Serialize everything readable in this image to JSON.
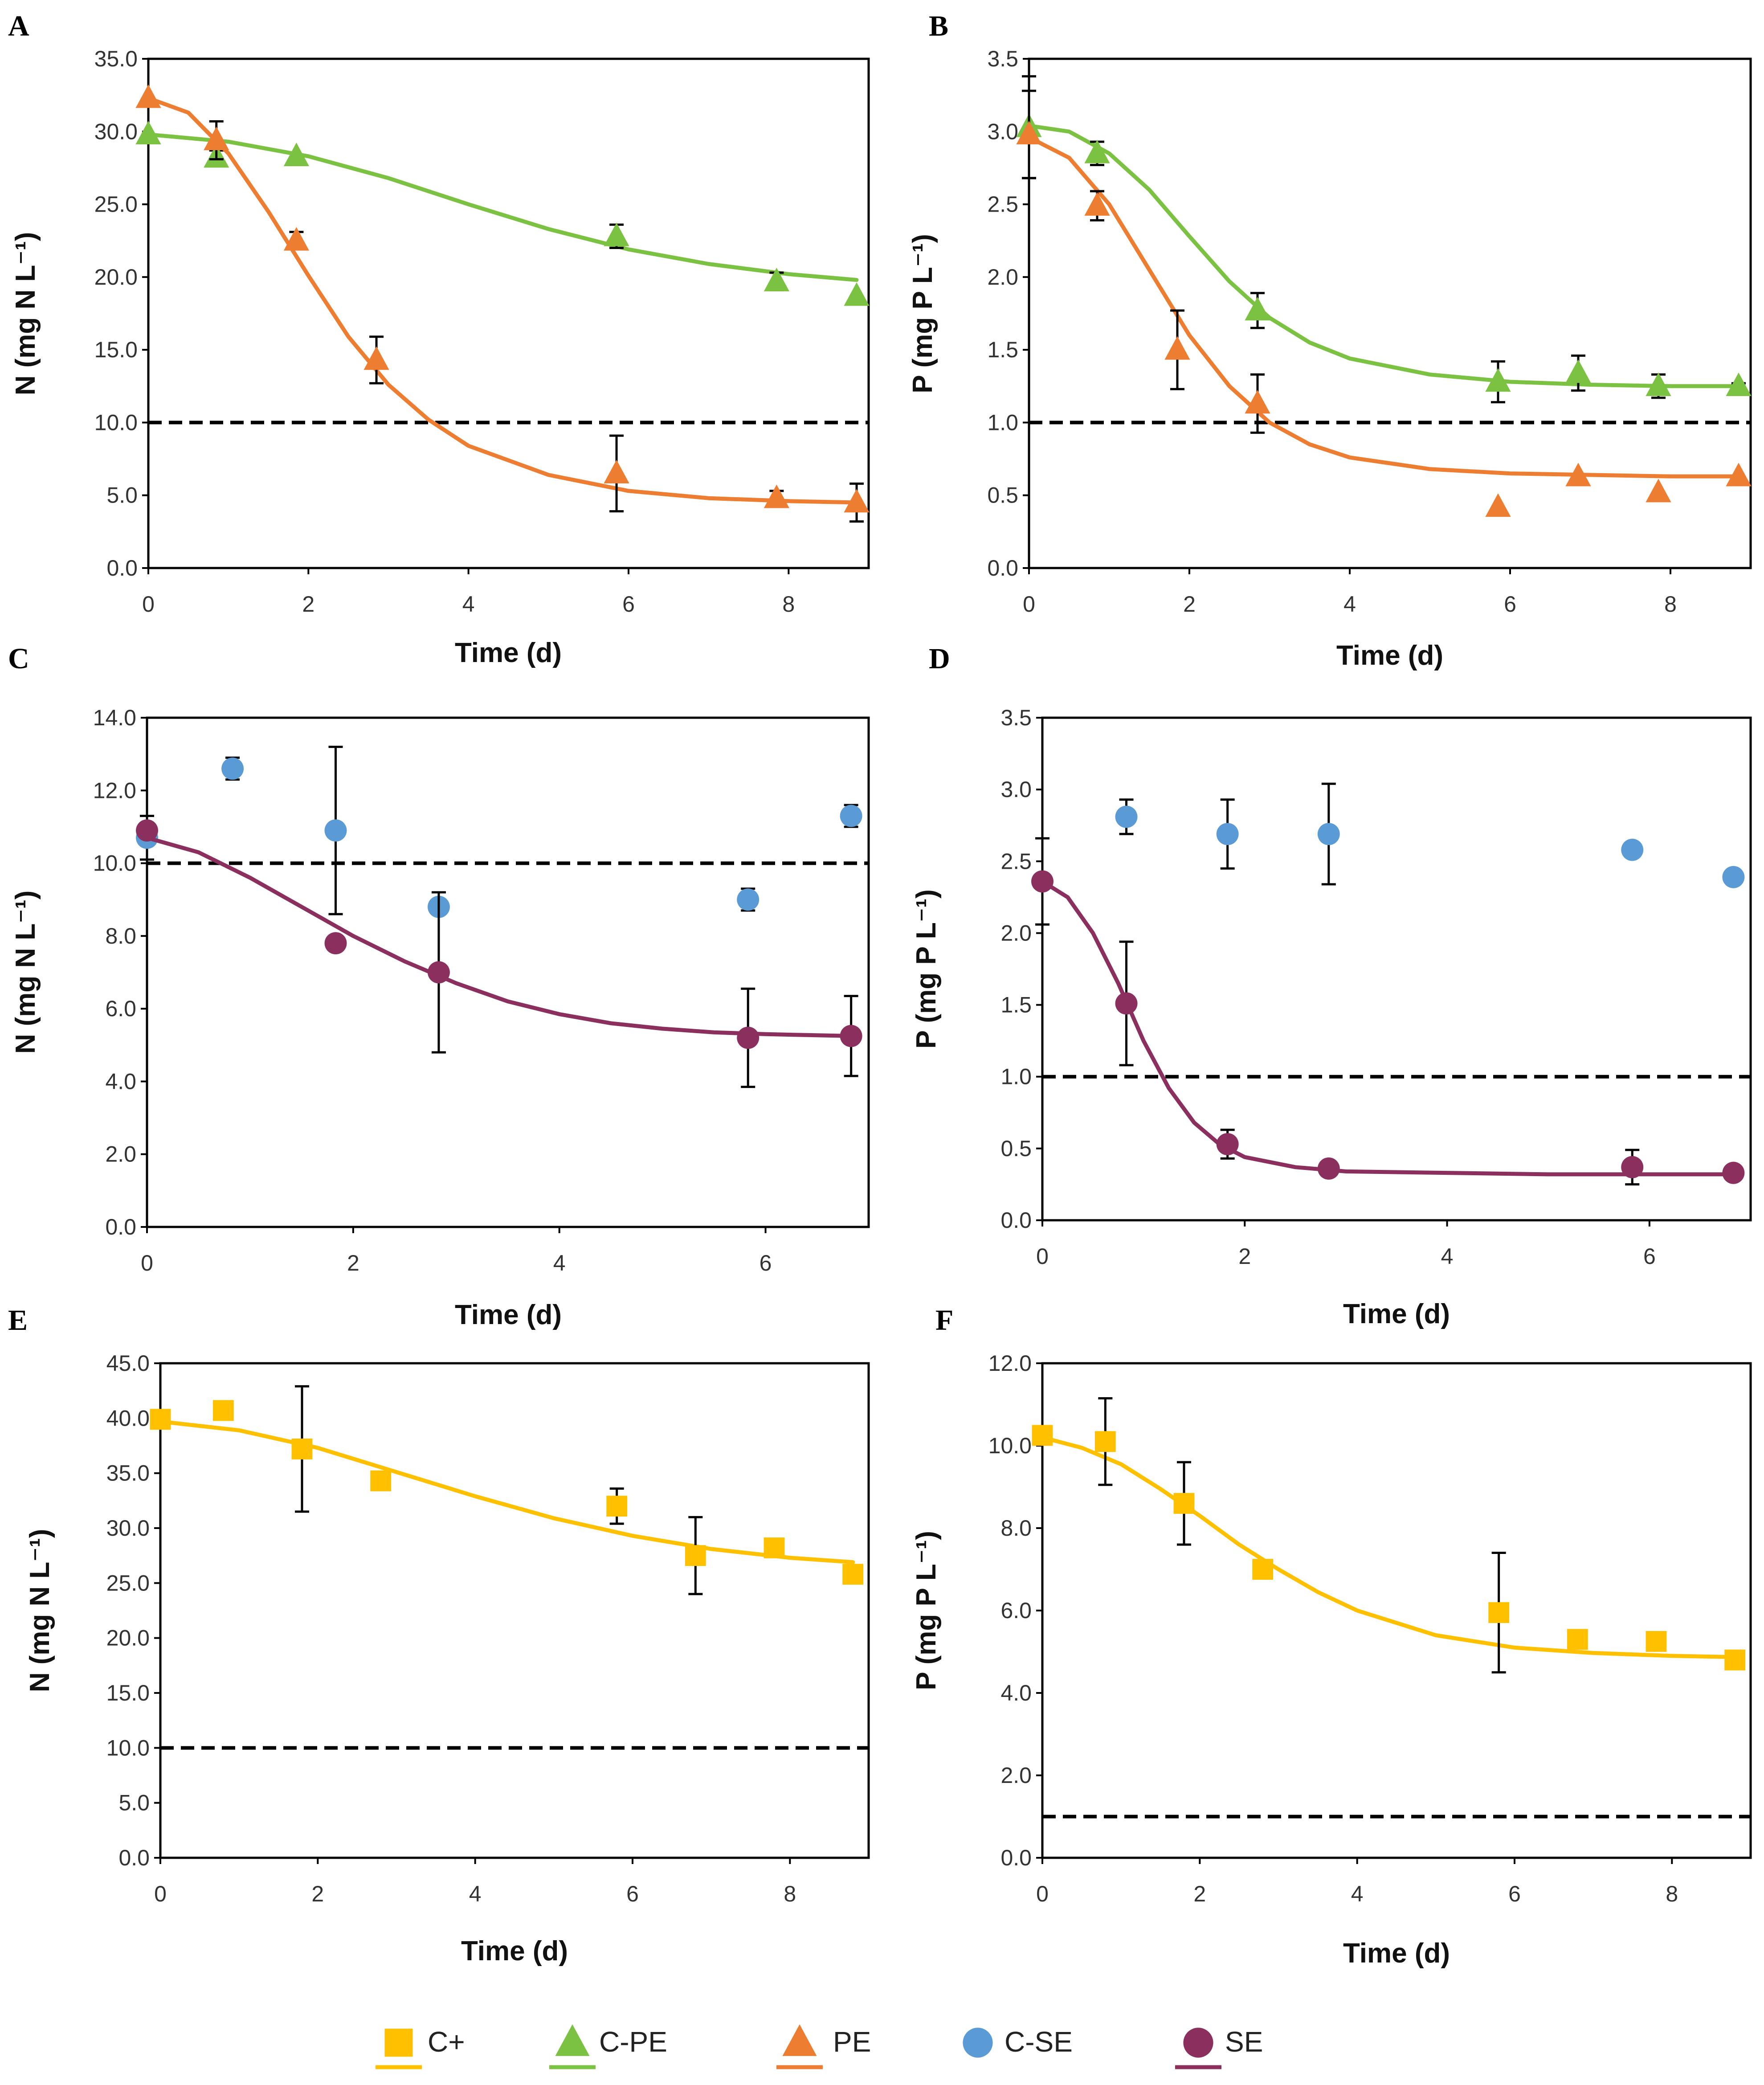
{
  "legend": [
    {
      "key": "cplus",
      "label": "C+",
      "marker": "square",
      "color": "#FFC000",
      "has_line": true
    },
    {
      "key": "cpe",
      "label": "C-PE",
      "marker": "triangle",
      "color": "#7CC242",
      "has_line": true
    },
    {
      "key": "pe",
      "label": "PE",
      "marker": "triangle",
      "color": "#ED7D31",
      "has_line": true
    },
    {
      "key": "cse",
      "label": "C-SE",
      "marker": "circle",
      "color": "#5B9BD5",
      "has_line": false
    },
    {
      "key": "se",
      "label": "SE",
      "marker": "circle",
      "color": "#8B2F5E",
      "has_line": true
    }
  ],
  "chart_data": [
    {
      "id": "A",
      "type": "scatter",
      "xlabel": "Time (d)",
      "ylabel": "N (mg N L⁻¹)",
      "xlim": [
        0,
        9
      ],
      "ylim": [
        0,
        35
      ],
      "xticks": [
        0,
        2,
        4,
        6,
        8
      ],
      "xtick_labels": [
        "0",
        "2",
        "4",
        "6",
        "8"
      ],
      "yticks": [
        0,
        5,
        10,
        15,
        20,
        25,
        30,
        35
      ],
      "ytick_labels": [
        "0.0",
        "5.0",
        "10.0",
        "15.0",
        "20.0",
        "25.0",
        "30.0",
        "35.0"
      ],
      "threshold": 10,
      "series": [
        {
          "name": "C-PE",
          "marker": "triangle",
          "color": "#7CC242",
          "x": [
            0,
            0.85,
            1.85,
            5.85,
            7.85,
            8.85
          ],
          "y": [
            29.8,
            28.2,
            28.3,
            22.8,
            19.7,
            18.7
          ],
          "err": [
            0,
            0.5,
            0,
            0.8,
            0.6,
            0
          ],
          "fit_x": [
            0,
            1,
            2,
            3,
            4,
            5,
            6,
            7,
            8,
            8.85
          ],
          "fit_y": [
            29.8,
            29.3,
            28.3,
            26.8,
            25.0,
            23.3,
            21.9,
            20.9,
            20.2,
            19.8
          ]
        },
        {
          "name": "PE",
          "marker": "triangle",
          "color": "#ED7D31",
          "x": [
            0,
            0.85,
            1.85,
            2.85,
            5.85,
            7.85,
            8.85
          ],
          "y": [
            32.3,
            29.4,
            22.5,
            14.3,
            6.5,
            4.8,
            4.5
          ],
          "err": [
            0,
            1.3,
            0.6,
            1.6,
            2.6,
            0.5,
            1.3
          ],
          "fit_x": [
            0,
            0.5,
            1,
            1.5,
            2,
            2.5,
            3,
            3.5,
            4,
            5,
            6,
            7,
            8,
            8.85
          ],
          "fit_y": [
            32.3,
            31.3,
            28.5,
            24.5,
            20.1,
            15.9,
            12.6,
            10.2,
            8.4,
            6.4,
            5.3,
            4.8,
            4.6,
            4.5
          ]
        }
      ]
    },
    {
      "id": "B",
      "type": "scatter",
      "xlabel": "Time (d)",
      "ylabel": "P (mg P L⁻¹)",
      "xlim": [
        0,
        9
      ],
      "ylim": [
        0,
        3.5
      ],
      "xticks": [
        0,
        2,
        4,
        6,
        8
      ],
      "xtick_labels": [
        "0",
        "2",
        "4",
        "6",
        "8"
      ],
      "yticks": [
        0,
        0.5,
        1,
        1.5,
        2,
        2.5,
        3,
        3.5
      ],
      "ytick_labels": [
        "0.0",
        "0.5",
        "1.0",
        "1.5",
        "2.0",
        "2.5",
        "3.0",
        "3.5"
      ],
      "threshold": 1.0,
      "series": [
        {
          "name": "C-PE",
          "marker": "triangle",
          "color": "#7CC242",
          "x": [
            0,
            0.85,
            2.85,
            5.85,
            6.85,
            7.85,
            8.85
          ],
          "y": [
            3.03,
            2.85,
            1.77,
            1.28,
            1.34,
            1.25,
            1.25
          ],
          "err": [
            0.35,
            0.08,
            0.12,
            0.14,
            0.12,
            0.08,
            0.02
          ],
          "fit_x": [
            0,
            0.5,
            1,
            1.5,
            2,
            2.5,
            3,
            3.5,
            4,
            5,
            6,
            7,
            8,
            8.85
          ],
          "fit_y": [
            3.04,
            3.0,
            2.85,
            2.6,
            2.28,
            1.97,
            1.72,
            1.55,
            1.44,
            1.33,
            1.28,
            1.26,
            1.25,
            1.25
          ]
        },
        {
          "name": "PE",
          "marker": "triangle",
          "color": "#ED7D31",
          "x": [
            0,
            0.85,
            1.85,
            2.85,
            5.85,
            6.85,
            7.85,
            8.85
          ],
          "y": [
            2.98,
            2.49,
            1.5,
            1.13,
            0.42,
            0.63,
            0.52,
            0.63
          ],
          "err": [
            0.3,
            0.1,
            0.27,
            0.2,
            0,
            0,
            0,
            0
          ],
          "fit_x": [
            0,
            0.5,
            1,
            1.5,
            2,
            2.5,
            3,
            3.5,
            4,
            5,
            6,
            7,
            8,
            8.85
          ],
          "fit_y": [
            2.96,
            2.82,
            2.5,
            2.05,
            1.6,
            1.25,
            1.0,
            0.85,
            0.76,
            0.68,
            0.65,
            0.64,
            0.63,
            0.63
          ]
        }
      ]
    },
    {
      "id": "C",
      "type": "scatter",
      "xlabel": "Time (d)",
      "ylabel": "N (mg N L⁻¹)",
      "xlim": [
        0,
        7
      ],
      "ylim": [
        0,
        14
      ],
      "xticks": [
        0,
        2,
        4,
        6
      ],
      "xtick_labels": [
        "0",
        "2",
        "4",
        "6"
      ],
      "yticks": [
        0,
        2,
        4,
        6,
        8,
        10,
        12,
        14
      ],
      "ytick_labels": [
        "0.0",
        "2.0",
        "4.0",
        "6.0",
        "8.0",
        "10.0",
        "12.0",
        "14.0"
      ],
      "threshold": 10,
      "series": [
        {
          "name": "C-SE",
          "marker": "circle",
          "color": "#5B9BD5",
          "x": [
            0,
            0.83,
            1.83,
            2.83,
            5.83,
            6.83
          ],
          "y": [
            10.7,
            12.6,
            10.9,
            8.8,
            9.0,
            11.3
          ],
          "err": [
            0.6,
            0.3,
            2.3,
            0,
            0.3,
            0.3
          ],
          "fit_x": [],
          "fit_y": []
        },
        {
          "name": "SE",
          "marker": "circle",
          "color": "#8B2F5E",
          "x": [
            0,
            1.83,
            2.83,
            5.83,
            6.83
          ],
          "y": [
            10.9,
            7.8,
            7.0,
            5.2,
            5.25
          ],
          "err": [
            0,
            0,
            2.2,
            1.35,
            1.1
          ],
          "fit_x": [
            0,
            0.5,
            1,
            1.5,
            2,
            2.5,
            3,
            3.5,
            4,
            4.5,
            5,
            5.5,
            6,
            6.83
          ],
          "fit_y": [
            10.7,
            10.3,
            9.6,
            8.8,
            8.0,
            7.3,
            6.7,
            6.2,
            5.85,
            5.6,
            5.45,
            5.35,
            5.3,
            5.25
          ]
        }
      ]
    },
    {
      "id": "D",
      "type": "scatter",
      "xlabel": "Time (d)",
      "ylabel": "P (mg P L⁻¹)",
      "xlim": [
        0,
        7
      ],
      "ylim": [
        0,
        3.5
      ],
      "xticks": [
        0,
        2,
        4,
        6
      ],
      "xtick_labels": [
        "0",
        "2",
        "4",
        "6"
      ],
      "yticks": [
        0,
        0.5,
        1,
        1.5,
        2,
        2.5,
        3,
        3.5
      ],
      "ytick_labels": [
        "0.0",
        "0.5",
        "1.0",
        "1.5",
        "2.0",
        "2.5",
        "3.0",
        "3.5"
      ],
      "threshold": 1.0,
      "series": [
        {
          "name": "C-SE",
          "marker": "circle",
          "color": "#5B9BD5",
          "x": [
            0.83,
            1.83,
            2.83,
            5.83,
            6.83
          ],
          "y": [
            2.81,
            2.69,
            2.69,
            2.58,
            2.39
          ],
          "err": [
            0.12,
            0.24,
            0.35,
            0.03,
            0.03
          ],
          "fit_x": [],
          "fit_y": []
        },
        {
          "name": "SE",
          "marker": "circle",
          "color": "#8B2F5E",
          "x": [
            0,
            0.83,
            1.83,
            2.83,
            5.83,
            6.83
          ],
          "y": [
            2.36,
            1.51,
            0.53,
            0.36,
            0.37,
            0.33
          ],
          "err": [
            0.3,
            0.43,
            0.1,
            0.05,
            0.12,
            0
          ],
          "fit_x": [
            0,
            0.25,
            0.5,
            0.75,
            1,
            1.25,
            1.5,
            1.75,
            2,
            2.5,
            3,
            4,
            5,
            6,
            6.83
          ],
          "fit_y": [
            2.36,
            2.25,
            2.0,
            1.65,
            1.25,
            0.92,
            0.68,
            0.53,
            0.44,
            0.37,
            0.34,
            0.33,
            0.32,
            0.32,
            0.32
          ]
        }
      ]
    },
    {
      "id": "E",
      "type": "scatter",
      "xlabel": "Time (d)",
      "ylabel": "N (mg N L⁻¹)",
      "xlim": [
        0,
        9
      ],
      "ylim": [
        0,
        45
      ],
      "xticks": [
        0,
        2,
        4,
        6,
        8
      ],
      "xtick_labels": [
        "0",
        "2",
        "4",
        "6",
        "8"
      ],
      "yticks": [
        0,
        5,
        10,
        15,
        20,
        25,
        30,
        35,
        40,
        45
      ],
      "ytick_labels": [
        "0.0",
        "5.0",
        "10.0",
        "15.0",
        "20.0",
        "25.0",
        "30.0",
        "35.0",
        "40.0",
        "45.0"
      ],
      "threshold": 10,
      "series": [
        {
          "name": "C+",
          "marker": "square",
          "color": "#FFC000",
          "x": [
            0,
            0.8,
            1.8,
            2.8,
            5.8,
            6.8,
            7.8,
            8.8
          ],
          "y": [
            39.9,
            40.7,
            37.2,
            34.3,
            32.0,
            27.5,
            28.2,
            25.8
          ],
          "err": [
            0,
            0,
            5.7,
            0,
            1.6,
            3.5,
            0,
            0
          ],
          "fit_x": [
            0,
            1,
            2,
            3,
            4,
            5,
            6,
            7,
            8,
            8.8
          ],
          "fit_y": [
            39.7,
            38.9,
            37.3,
            35.1,
            32.9,
            30.9,
            29.3,
            28.1,
            27.3,
            26.9
          ]
        }
      ]
    },
    {
      "id": "F",
      "type": "scatter",
      "xlabel": "Time (d)",
      "ylabel": "P (mg P L⁻¹)",
      "xlim": [
        0,
        9
      ],
      "ylim": [
        0,
        12
      ],
      "xticks": [
        0,
        2,
        4,
        6,
        8
      ],
      "xtick_labels": [
        "0",
        "2",
        "4",
        "6",
        "8"
      ],
      "yticks": [
        0,
        2,
        4,
        6,
        8,
        10,
        12
      ],
      "ytick_labels": [
        "0.0",
        "2.0",
        "4.0",
        "6.0",
        "8.0",
        "10.0",
        "12.0"
      ],
      "threshold": 1.0,
      "series": [
        {
          "name": "C+",
          "marker": "square",
          "color": "#FFC000",
          "x": [
            0,
            0.8,
            1.8,
            2.8,
            5.8,
            6.8,
            7.8,
            8.8
          ],
          "y": [
            10.25,
            10.1,
            8.6,
            7.0,
            5.95,
            5.3,
            5.25,
            4.8
          ],
          "err": [
            0,
            1.05,
            1.0,
            0,
            1.45,
            0,
            0,
            0
          ],
          "fit_x": [
            0,
            0.5,
            1,
            1.5,
            2,
            2.5,
            3,
            3.5,
            4,
            5,
            6,
            7,
            8,
            8.8
          ],
          "fit_y": [
            10.2,
            9.95,
            9.55,
            8.95,
            8.3,
            7.6,
            7.0,
            6.45,
            6.0,
            5.4,
            5.1,
            4.97,
            4.9,
            4.87
          ]
        }
      ]
    }
  ]
}
